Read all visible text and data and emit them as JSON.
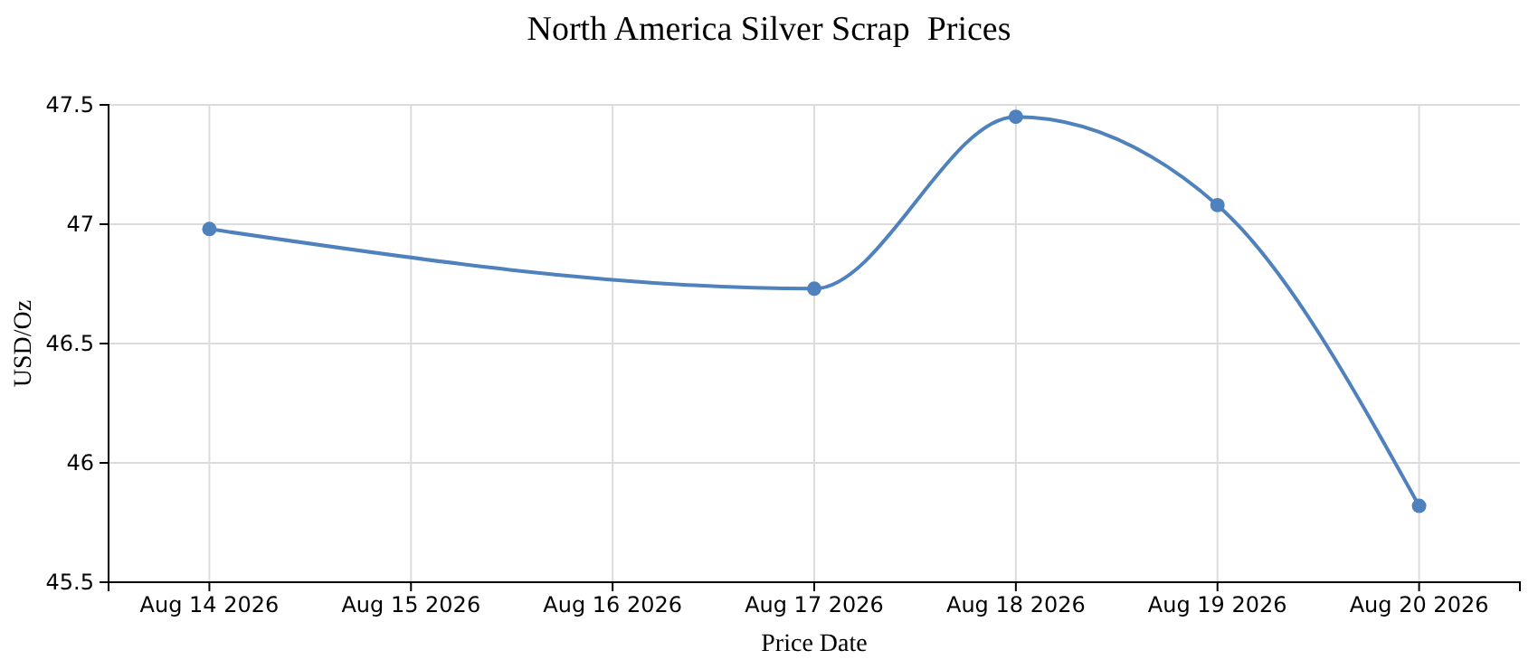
{
  "chart_data": {
    "type": "line",
    "title": "North America Silver Scrap  Prices",
    "xlabel": "Price Date",
    "ylabel": "USD/Oz",
    "x": [
      "2026-08-14",
      "2026-08-17",
      "2026-08-18",
      "2026-08-19",
      "2026-08-20"
    ],
    "series": [
      {
        "color": "#4f81bc",
        "values": [
          46.98,
          46.73,
          47.45,
          47.08,
          45.82
        ]
      }
    ],
    "xlim": [
      "2026-08-13T12:00",
      "2026-08-20T12:00"
    ],
    "xticks": [
      {
        "value": "2026-08-14",
        "label": "Aug 14 2026"
      },
      {
        "value": "2026-08-15",
        "label": "Aug 15 2026"
      },
      {
        "value": "2026-08-16",
        "label": "Aug 16 2026"
      },
      {
        "value": "2026-08-17",
        "label": "Aug 17 2026"
      },
      {
        "value": "2026-08-18",
        "label": "Aug 18 2026"
      },
      {
        "value": "2026-08-19",
        "label": "Aug 19 2026"
      },
      {
        "value": "2026-08-20",
        "label": "Aug 20 2026"
      }
    ],
    "ylim": [
      45.5,
      47.5
    ],
    "yticks": [
      45.5,
      46,
      46.5,
      47,
      47.5
    ],
    "grid": true,
    "legend": false,
    "marker": "circle",
    "line_style": "solid"
  }
}
